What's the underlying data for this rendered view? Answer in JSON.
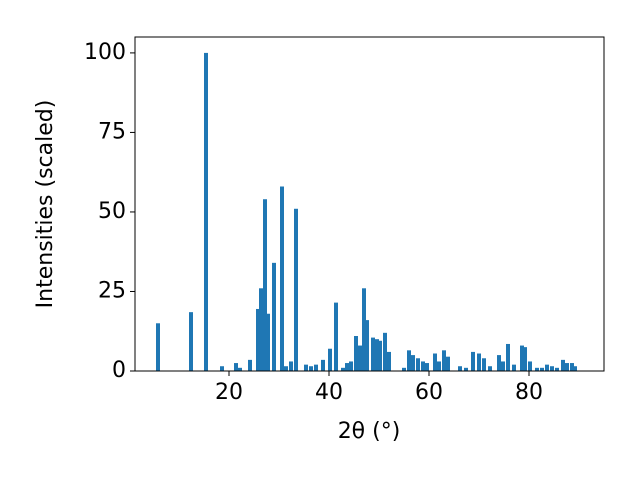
{
  "chart_data": {
    "type": "bar",
    "x_label": "2θ (°)",
    "y_label": "Intensities (scaled)",
    "color": "#1f77b4",
    "x": [
      5.8,
      12.4,
      15.4,
      18.6,
      21.4,
      22.2,
      24.2,
      25.8,
      26.4,
      27.2,
      27.8,
      29,
      30.6,
      31.4,
      32.4,
      33.4,
      35.4,
      36.4,
      37.4,
      38.8,
      40.2,
      41.4,
      42.8,
      43.6,
      44.4,
      45.4,
      46.2,
      47,
      47.6,
      48.8,
      49.6,
      50.2,
      51.2,
      52,
      55,
      56,
      56.8,
      57.8,
      58.8,
      59.6,
      61.2,
      62,
      63,
      63.8,
      66.2,
      67.4,
      68.8,
      70,
      71,
      72.2,
      74,
      74.8,
      75.8,
      77,
      78.6,
      79.2,
      80.2,
      81.6,
      82.6,
      83.6,
      84.6,
      85.6,
      86.8,
      87.6,
      88.6,
      89.2
    ],
    "values": [
      15,
      18.5,
      100,
      1.5,
      2.5,
      1,
      3.5,
      19.5,
      26,
      54,
      18,
      34,
      58,
      1.5,
      3,
      51,
      2,
      1.5,
      2,
      3.5,
      7,
      21.5,
      1,
      2.5,
      3,
      11,
      8,
      26,
      16,
      10.5,
      10,
      9.5,
      12,
      6,
      1,
      6.5,
      5,
      4,
      3,
      2.5,
      5.5,
      3,
      6.5,
      4.5,
      1.5,
      1,
      6,
      5.5,
      4,
      1.5,
      5,
      3,
      8.5,
      2,
      8,
      7.5,
      3,
      1,
      1,
      2,
      1.5,
      1,
      3.5,
      2.5,
      2.5,
      1.5
    ],
    "xlim": [
      1.2,
      95
    ],
    "ylim": [
      0,
      105
    ],
    "xticks": [
      20,
      40,
      60,
      80
    ],
    "yticks": [
      0,
      25,
      50,
      75,
      100
    ]
  }
}
